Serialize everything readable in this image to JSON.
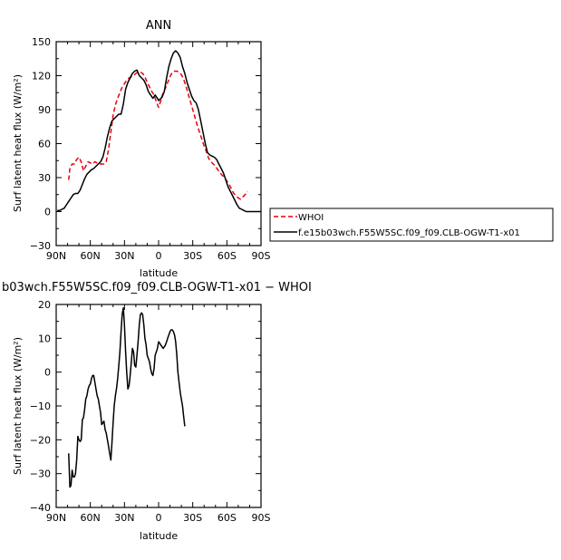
{
  "chart_data": [
    {
      "type": "line",
      "title": "ANN",
      "xlabel": "latitude",
      "ylabel": "Surf latent heat flux (W/m²)",
      "xlim": [
        -90,
        90
      ],
      "ylim": [
        -30,
        150
      ],
      "x_reversed": true,
      "xticks": [
        -90,
        -60,
        -30,
        0,
        30,
        60,
        90
      ],
      "xtick_labels": [
        "90N",
        "60N",
        "30N",
        "0",
        "30S",
        "60S",
        "90S"
      ],
      "yticks": [
        -30,
        0,
        30,
        60,
        90,
        120,
        150
      ],
      "ytick_labels": [
        "−30",
        "0",
        "30",
        "60",
        "90",
        "120",
        "150"
      ],
      "grid": false,
      "legend_position": "right",
      "series": [
        {
          "name": "WHOI",
          "color": "#e8000b",
          "dash": "dashed",
          "points": [
            [
              -79,
              28
            ],
            [
              -78,
              38
            ],
            [
              -76,
              42
            ],
            [
              -74,
              42
            ],
            [
              -72,
              46
            ],
            [
              -70,
              48
            ],
            [
              -68,
              44
            ],
            [
              -66,
              36
            ],
            [
              -64,
              40
            ],
            [
              -62,
              44
            ],
            [
              -60,
              43
            ],
            [
              -58,
              42
            ],
            [
              -56,
              44
            ],
            [
              -54,
              43
            ],
            [
              -52,
              42
            ],
            [
              -50,
              42
            ],
            [
              -48,
              42
            ],
            [
              -46,
              44
            ],
            [
              -44,
              55
            ],
            [
              -42,
              70
            ],
            [
              -40,
              85
            ],
            [
              -38,
              94
            ],
            [
              -36,
              100
            ],
            [
              -34,
              105
            ],
            [
              -32,
              110
            ],
            [
              -30,
              113
            ],
            [
              -28,
              116
            ],
            [
              -26,
              118
            ],
            [
              -24,
              119
            ],
            [
              -22,
              120
            ],
            [
              -20,
              122
            ],
            [
              -18,
              123
            ],
            [
              -16,
              123
            ],
            [
              -14,
              122
            ],
            [
              -12,
              119
            ],
            [
              -10,
              114
            ],
            [
              -8,
              110
            ],
            [
              -6,
              106
            ],
            [
              -4,
              103
            ],
            [
              -2,
              97
            ],
            [
              0,
              92
            ],
            [
              2,
              98
            ],
            [
              4,
              105
            ],
            [
              6,
              109
            ],
            [
              8,
              114
            ],
            [
              10,
              119
            ],
            [
              12,
              123
            ],
            [
              14,
              124
            ],
            [
              16,
              124
            ],
            [
              18,
              123
            ],
            [
              20,
              121
            ],
            [
              22,
              117
            ],
            [
              24,
              111
            ],
            [
              26,
              104
            ],
            [
              28,
              97
            ],
            [
              30,
              90
            ],
            [
              32,
              83
            ],
            [
              34,
              76
            ],
            [
              36,
              70
            ],
            [
              38,
              64
            ],
            [
              40,
              58
            ],
            [
              42,
              53
            ],
            [
              44,
              47
            ],
            [
              46,
              44
            ],
            [
              48,
              42
            ],
            [
              50,
              40
            ],
            [
              52,
              37
            ],
            [
              54,
              34
            ],
            [
              56,
              32
            ],
            [
              58,
              30
            ],
            [
              60,
              27
            ],
            [
              62,
              24
            ],
            [
              64,
              20
            ],
            [
              66,
              16
            ],
            [
              68,
              14
            ],
            [
              70,
              12
            ],
            [
              72,
              11
            ],
            [
              74,
              13
            ],
            [
              76,
              15
            ],
            [
              78,
              18
            ]
          ]
        },
        {
          "name": "f.e15b03wch.F55W5SC.f09_f09.CLB-OGW-T1-x01",
          "color": "#000000",
          "dash": "solid",
          "points": [
            [
              -89,
              1
            ],
            [
              -87,
              1
            ],
            [
              -85,
              2
            ],
            [
              -83,
              3
            ],
            [
              -81,
              6
            ],
            [
              -79,
              9
            ],
            [
              -77,
              12
            ],
            [
              -75,
              15
            ],
            [
              -73,
              16
            ],
            [
              -71,
              16
            ],
            [
              -69,
              19
            ],
            [
              -67,
              24
            ],
            [
              -65,
              29
            ],
            [
              -63,
              33
            ],
            [
              -61,
              35
            ],
            [
              -59,
              37
            ],
            [
              -57,
              38
            ],
            [
              -55,
              40
            ],
            [
              -53,
              42
            ],
            [
              -51,
              44
            ],
            [
              -49,
              48
            ],
            [
              -47,
              56
            ],
            [
              -45,
              66
            ],
            [
              -43,
              74
            ],
            [
              -41,
              80
            ],
            [
              -39,
              82
            ],
            [
              -37,
              84
            ],
            [
              -35,
              86
            ],
            [
              -33,
              86
            ],
            [
              -31,
              95
            ],
            [
              -29,
              108
            ],
            [
              -27,
              114
            ],
            [
              -25,
              118
            ],
            [
              -23,
              122
            ],
            [
              -21,
              124
            ],
            [
              -19,
              125
            ],
            [
              -17,
              120
            ],
            [
              -15,
              118
            ],
            [
              -13,
              116
            ],
            [
              -11,
              112
            ],
            [
              -9,
              106
            ],
            [
              -7,
              103
            ],
            [
              -5,
              100
            ],
            [
              -3,
              103
            ],
            [
              -1,
              100
            ],
            [
              0,
              98
            ],
            [
              1,
              99
            ],
            [
              3,
              101
            ],
            [
              5,
              106
            ],
            [
              7,
              118
            ],
            [
              9,
              128
            ],
            [
              11,
              135
            ],
            [
              13,
              140
            ],
            [
              15,
              142
            ],
            [
              17,
              140
            ],
            [
              19,
              136
            ],
            [
              21,
              128
            ],
            [
              23,
              122
            ],
            [
              25,
              114
            ],
            [
              27,
              108
            ],
            [
              29,
              102
            ],
            [
              31,
              98
            ],
            [
              33,
              96
            ],
            [
              35,
              90
            ],
            [
              37,
              80
            ],
            [
              39,
              70
            ],
            [
              41,
              60
            ],
            [
              43,
              52
            ],
            [
              45,
              50
            ],
            [
              47,
              49
            ],
            [
              49,
              48
            ],
            [
              51,
              46
            ],
            [
              53,
              42
            ],
            [
              55,
              38
            ],
            [
              57,
              34
            ],
            [
              59,
              28
            ],
            [
              61,
              22
            ],
            [
              63,
              18
            ],
            [
              65,
              14
            ],
            [
              67,
              10
            ],
            [
              69,
              6
            ],
            [
              71,
              3
            ],
            [
              73,
              2
            ],
            [
              75,
              1
            ],
            [
              77,
              0
            ],
            [
              79,
              0
            ],
            [
              82,
              0
            ],
            [
              90,
              0
            ]
          ]
        }
      ]
    },
    {
      "type": "line",
      "title": "b03wch.F55W5SC.f09_f09.CLB-OGW-T1-x01 − WHOI",
      "xlabel": "latitude",
      "ylabel": "Surf latent heat flux (W/m²)",
      "xlim": [
        -90,
        90
      ],
      "ylim": [
        -40,
        20
      ],
      "x_reversed": true,
      "xticks": [
        -90,
        -60,
        -30,
        0,
        30,
        60,
        90
      ],
      "xtick_labels": [
        "90N",
        "60N",
        "30N",
        "0",
        "30S",
        "60S",
        "90S"
      ],
      "yticks": [
        -40,
        -30,
        -20,
        -10,
        0,
        10,
        20
      ],
      "ytick_labels": [
        "−40",
        "−30",
        "−20",
        "−10",
        "0",
        "10",
        "20"
      ],
      "grid": false,
      "series": [
        {
          "name": "",
          "color": "#000000",
          "dash": "solid",
          "points": [
            [
              -79,
              -24
            ],
            [
              -78,
              -34
            ],
            [
              -77,
              -33.5
            ],
            [
              -76,
              -29
            ],
            [
              -75,
              -31
            ],
            [
              -74,
              -31
            ],
            [
              -73,
              -30
            ],
            [
              -72,
              -26
            ],
            [
              -71,
              -19
            ],
            [
              -70,
              -20
            ],
            [
              -69,
              -20.5
            ],
            [
              -68,
              -20
            ],
            [
              -67,
              -14
            ],
            [
              -66,
              -13.5
            ],
            [
              -65,
              -11
            ],
            [
              -64,
              -8
            ],
            [
              -63,
              -7
            ],
            [
              -62,
              -5
            ],
            [
              -61,
              -4
            ],
            [
              -60,
              -3.5
            ],
            [
              -59,
              -2
            ],
            [
              -58,
              -1
            ],
            [
              -57,
              -1
            ],
            [
              -56,
              -3
            ],
            [
              -55,
              -5
            ],
            [
              -54,
              -7
            ],
            [
              -53,
              -8
            ],
            [
              -52,
              -10
            ],
            [
              -51,
              -12
            ],
            [
              -50,
              -15.5
            ],
            [
              -49,
              -15
            ],
            [
              -48,
              -14.5
            ],
            [
              -47,
              -17
            ],
            [
              -46,
              -18
            ],
            [
              -45,
              -20
            ],
            [
              -44,
              -22
            ],
            [
              -43,
              -24
            ],
            [
              -42,
              -26
            ],
            [
              -41,
              -21
            ],
            [
              -40,
              -15
            ],
            [
              -39,
              -10
            ],
            [
              -38,
              -7
            ],
            [
              -37,
              -5
            ],
            [
              -36,
              -2
            ],
            [
              -35,
              2
            ],
            [
              -34,
              6
            ],
            [
              -33,
              12
            ],
            [
              -32,
              17
            ],
            [
              -31,
              19
            ],
            [
              -30,
              14
            ],
            [
              -29,
              6
            ],
            [
              -28,
              0
            ],
            [
              -27,
              -5
            ],
            [
              -26,
              -4
            ],
            [
              -25,
              -1
            ],
            [
              -24,
              3
            ],
            [
              -23,
              7
            ],
            [
              -22,
              6
            ],
            [
              -21,
              2
            ],
            [
              -20,
              1.5
            ],
            [
              -19,
              5
            ],
            [
              -18,
              9
            ],
            [
              -17,
              14
            ],
            [
              -16,
              17
            ],
            [
              -15,
              17.5
            ],
            [
              -14,
              17
            ],
            [
              -13,
              14
            ],
            [
              -12,
              10
            ],
            [
              -11,
              8
            ],
            [
              -10,
              5
            ],
            [
              -9,
              4
            ],
            [
              -8,
              3
            ],
            [
              -7,
              1
            ],
            [
              -6,
              -0.5
            ],
            [
              -5,
              -1
            ],
            [
              -4,
              1
            ],
            [
              -3,
              5
            ],
            [
              -2,
              6
            ],
            [
              -1,
              7
            ],
            [
              0,
              9
            ],
            [
              1,
              8.5
            ],
            [
              2,
              8
            ],
            [
              3,
              7.5
            ],
            [
              4,
              7
            ],
            [
              5,
              7.5
            ],
            [
              6,
              8
            ],
            [
              7,
              9
            ],
            [
              8,
              10
            ],
            [
              9,
              11
            ],
            [
              10,
              12
            ],
            [
              11,
              12.5
            ],
            [
              12,
              12.5
            ],
            [
              13,
              12
            ],
            [
              14,
              11
            ],
            [
              15,
              9
            ],
            [
              16,
              5
            ],
            [
              17,
              0
            ],
            [
              18,
              -3
            ],
            [
              19,
              -6
            ],
            [
              20,
              -8
            ],
            [
              21,
              -10
            ],
            [
              22,
              -13
            ],
            [
              23,
              -16
            ]
          ]
        }
      ]
    }
  ]
}
